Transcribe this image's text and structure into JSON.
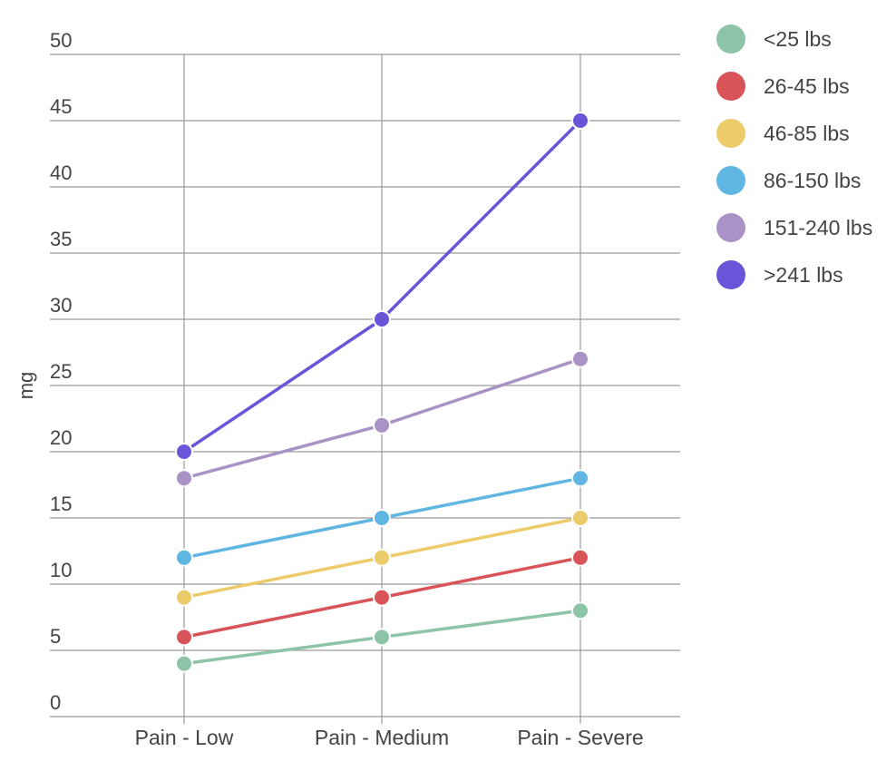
{
  "chart_data": {
    "type": "line",
    "title": "",
    "xlabel": "",
    "ylabel": "mg",
    "ylim": [
      0,
      50
    ],
    "yticks": [
      0,
      5,
      10,
      15,
      20,
      25,
      30,
      35,
      40,
      45,
      50
    ],
    "categories": [
      "Pain - Low",
      "Pain - Medium",
      "Pain - Severe"
    ],
    "legend_position": "right",
    "series": [
      {
        "name": "<25 lbs",
        "color": "#8dc3a7",
        "values": [
          4,
          6,
          8
        ]
      },
      {
        "name": "26-45 lbs",
        "color": "#d95459",
        "values": [
          6,
          9,
          12
        ]
      },
      {
        "name": "46-85 lbs",
        "color": "#eccb6b",
        "values": [
          9,
          12,
          15
        ]
      },
      {
        "name": "86-150 lbs",
        "color": "#5fb6e2",
        "values": [
          12,
          15,
          18
        ]
      },
      {
        "name": "151-240 lbs",
        "color": "#a993c6",
        "values": [
          18,
          22,
          27
        ]
      },
      {
        "name": ">241 lbs",
        "color": "#6a55d8",
        "values": [
          20,
          30,
          45
        ]
      }
    ]
  }
}
